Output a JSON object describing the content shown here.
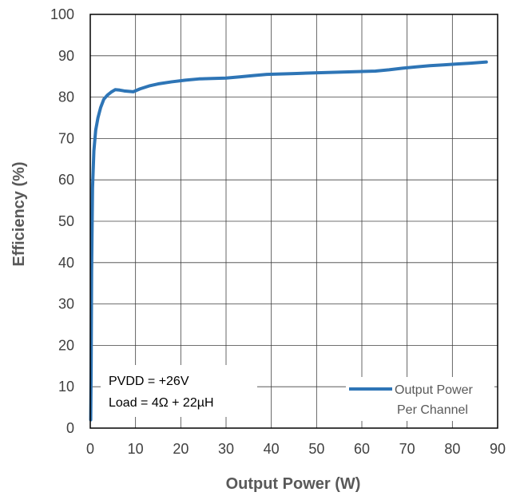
{
  "chart_data": {
    "type": "line",
    "xlabel": "Output Power (W)",
    "ylabel": "Efficiency (%)",
    "xlim": [
      0,
      90
    ],
    "ylim": [
      0,
      100
    ],
    "x_ticks": [
      0,
      10,
      20,
      30,
      40,
      50,
      60,
      70,
      80,
      90
    ],
    "y_ticks": [
      0,
      10,
      20,
      30,
      40,
      50,
      60,
      70,
      80,
      90,
      100
    ],
    "grid": true,
    "legend_position": "bottom-right",
    "series": [
      {
        "name": "Output Power Per Channel",
        "color": "#2E75B6",
        "x": [
          0.1,
          0.2,
          0.3,
          0.5,
          0.8,
          1.2,
          1.7,
          2.3,
          3.0,
          3.8,
          4.6,
          5.5,
          6.5,
          7.5,
          8.5,
          9.5,
          11,
          13,
          15,
          18,
          21,
          24,
          27,
          30,
          33,
          36,
          39,
          42,
          45,
          48,
          51,
          54,
          57,
          60,
          63,
          66,
          69,
          72,
          75,
          78,
          81,
          84,
          87.5
        ],
        "y": [
          2,
          15,
          38,
          58,
          67,
          72,
          75,
          77.5,
          79.5,
          80.5,
          81.2,
          81.8,
          81.7,
          81.5,
          81.4,
          81.3,
          82.0,
          82.7,
          83.2,
          83.7,
          84.1,
          84.4,
          84.5,
          84.6,
          84.9,
          85.2,
          85.5,
          85.6,
          85.7,
          85.8,
          85.9,
          86.0,
          86.1,
          86.2,
          86.3,
          86.6,
          87.0,
          87.3,
          87.6,
          87.8,
          88.0,
          88.2,
          88.5
        ]
      }
    ],
    "annotations": [
      "PVDD = +26V",
      "Load = 4Ω + 22µH"
    ],
    "legend": {
      "label_line1": "Output Power",
      "label_line2": "Per Channel"
    }
  }
}
